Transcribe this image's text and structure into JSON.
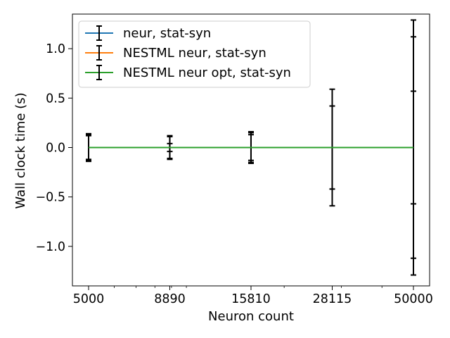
{
  "chart_data": {
    "type": "line",
    "xlabel": "Neuron count",
    "ylabel": "Wall clock time (s)",
    "x": [
      5000,
      8890,
      15810,
      28115,
      50000
    ],
    "x_scale": "log",
    "x_tick_labels": [
      "5000",
      "8890",
      "15810",
      "28115",
      "50000"
    ],
    "y_ticks": [
      -1.0,
      -0.5,
      0.0,
      0.5,
      1.0
    ],
    "y_tick_labels": [
      "−1.0",
      "−0.5",
      "0.0",
      "0.5",
      "1.0"
    ],
    "ylim": [
      -1.4,
      1.35
    ],
    "grid": false,
    "legend_position": "upper-left",
    "series": [
      {
        "name": "neur, stat-syn",
        "color": "#1f77b4",
        "values": [
          0,
          0,
          0,
          0,
          0
        ],
        "errors": [
          0.14,
          0.12,
          0.15,
          0.59,
          1.29
        ]
      },
      {
        "name": "NESTML neur, stat-syn",
        "color": "#ff7f0e",
        "values": [
          0,
          0,
          0,
          0,
          0
        ],
        "errors": [
          0.13,
          0.11,
          0.16,
          0.42,
          1.12
        ]
      },
      {
        "name": "NESTML neur opt, stat-syn",
        "color": "#2ca02c",
        "values": [
          0,
          0,
          0,
          0,
          0
        ],
        "errors": [
          0.12,
          0.04,
          0.13,
          0.42,
          0.57
        ]
      }
    ]
  }
}
